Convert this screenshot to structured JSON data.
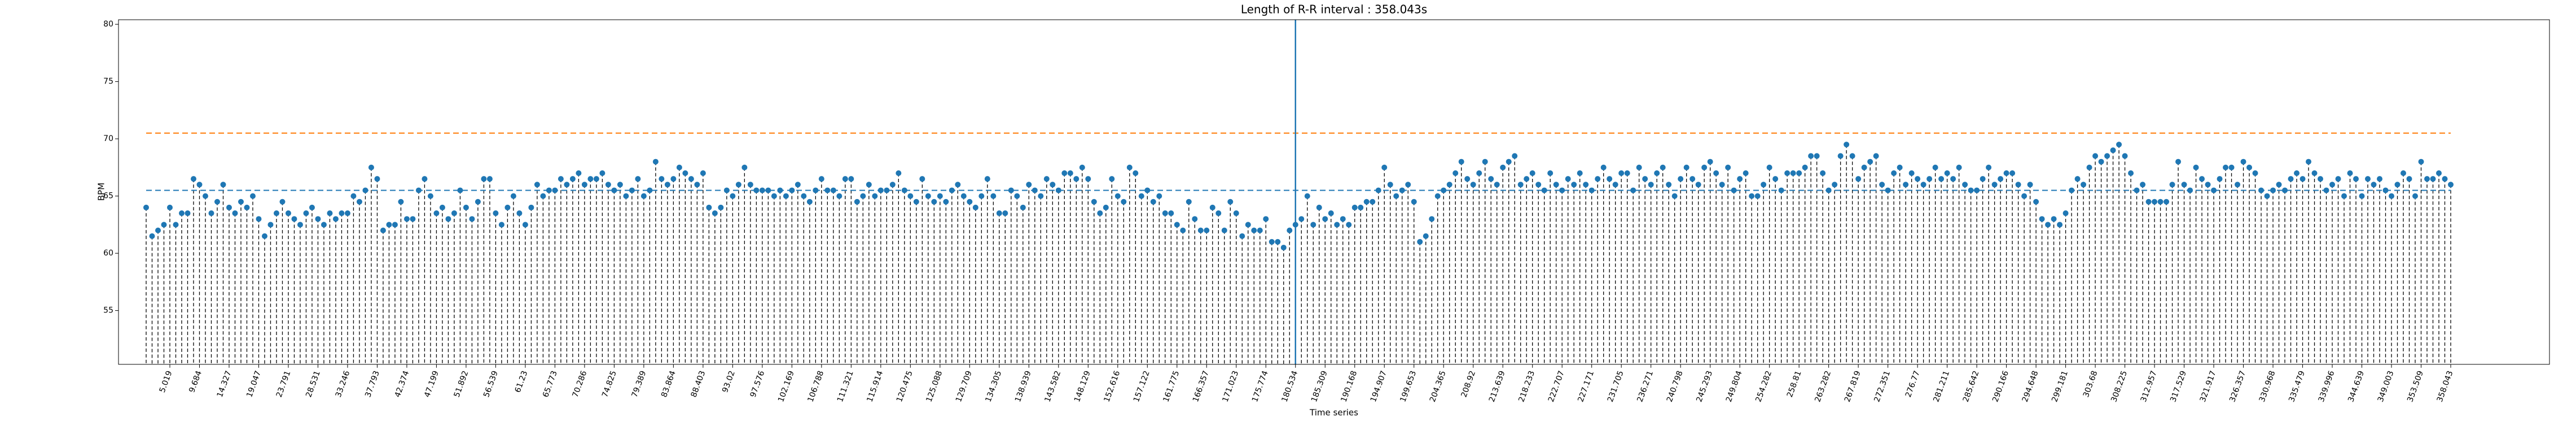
{
  "chart_data": {
    "type": "stem",
    "title": "Length of R-R interval : 358.043s",
    "x_label": "Time series",
    "y_label": "BPM",
    "color": "#1f77b4",
    "stem_color": "#000000",
    "ylim": [
      50.3,
      80.4
    ],
    "yticks": [
      55,
      60,
      65,
      70,
      75,
      80
    ],
    "hlines": [
      {
        "value": 65.5,
        "color": "#1f77b4"
      },
      {
        "value": 70.5,
        "color": "#ff7f0e"
      }
    ],
    "vline_x": 180.534,
    "vline_color": "#1f77b4",
    "categories": [
      null,
      null,
      null,
      null,
      "5.019",
      null,
      null,
      null,
      null,
      "9.684",
      null,
      null,
      null,
      null,
      "14.327",
      null,
      null,
      null,
      null,
      "19.047",
      null,
      null,
      null,
      null,
      "23.791",
      null,
      null,
      null,
      null,
      "28.531",
      null,
      null,
      null,
      null,
      "33.246",
      null,
      null,
      null,
      null,
      "37.793",
      null,
      null,
      null,
      null,
      "42.374",
      null,
      null,
      null,
      null,
      "47.199",
      null,
      null,
      null,
      null,
      "51.892",
      null,
      null,
      null,
      null,
      "56.539",
      null,
      null,
      null,
      null,
      "61.23",
      null,
      null,
      null,
      null,
      "65.773",
      null,
      null,
      null,
      null,
      "70.286",
      null,
      null,
      null,
      null,
      "74.825",
      null,
      null,
      null,
      null,
      "79.389",
      null,
      null,
      null,
      null,
      "83.864",
      null,
      null,
      null,
      null,
      "88.403",
      null,
      null,
      null,
      null,
      "93.02",
      null,
      null,
      null,
      null,
      "97.576",
      null,
      null,
      null,
      null,
      "102.169",
      null,
      null,
      null,
      null,
      "106.788",
      null,
      null,
      null,
      null,
      "111.321",
      null,
      null,
      null,
      null,
      "115.914",
      null,
      null,
      null,
      null,
      "120.475",
      null,
      null,
      null,
      null,
      "125.088",
      null,
      null,
      null,
      null,
      "129.709",
      null,
      null,
      null,
      null,
      "134.305",
      null,
      null,
      null,
      null,
      "138.939",
      null,
      null,
      null,
      null,
      "143.582",
      null,
      null,
      null,
      null,
      "148.129",
      null,
      null,
      null,
      null,
      "152.616",
      null,
      null,
      null,
      null,
      "157.122",
      null,
      null,
      null,
      null,
      "161.775",
      null,
      null,
      null,
      null,
      "166.357",
      null,
      null,
      null,
      null,
      "171.023",
      null,
      null,
      null,
      null,
      "175.774",
      null,
      null,
      null,
      null,
      "180.534",
      null,
      null,
      null,
      null,
      "185.309",
      null,
      null,
      null,
      null,
      "190.168",
      null,
      null,
      null,
      null,
      "194.907",
      null,
      null,
      null,
      null,
      "199.653",
      null,
      null,
      null,
      null,
      "204.365",
      null,
      null,
      null,
      null,
      "208.92",
      null,
      null,
      null,
      null,
      "213.639",
      null,
      null,
      null,
      null,
      "218.233",
      null,
      null,
      null,
      null,
      "222.707",
      null,
      null,
      null,
      null,
      "227.171",
      null,
      null,
      null,
      null,
      "231.705",
      null,
      null,
      null,
      null,
      "236.271",
      null,
      null,
      null,
      null,
      "240.798",
      null,
      null,
      null,
      null,
      "245.293",
      null,
      null,
      null,
      null,
      "249.804",
      null,
      null,
      null,
      null,
      "254.282",
      null,
      null,
      null,
      null,
      "258.81",
      null,
      null,
      null,
      null,
      "263.282",
      null,
      null,
      null,
      null,
      "267.819",
      null,
      null,
      null,
      null,
      "272.351",
      null,
      null,
      null,
      null,
      "276.77",
      null,
      null,
      null,
      null,
      "281.211",
      null,
      null,
      null,
      null,
      "285.642",
      null,
      null,
      null,
      null,
      "290.166",
      null,
      null,
      null,
      null,
      "294.648",
      null,
      null,
      null,
      null,
      "299.181",
      null,
      null,
      null,
      null,
      "303.68",
      null,
      null,
      null,
      null,
      "308.225",
      null,
      null,
      null,
      null,
      "312.957",
      null,
      null,
      null,
      null,
      "317.529",
      null,
      null,
      null,
      null,
      "321.917",
      null,
      null,
      null,
      null,
      "326.357",
      null,
      null,
      null,
      null,
      "330.968",
      null,
      null,
      null,
      null,
      "335.479",
      null,
      null,
      null,
      null,
      "339.996",
      null,
      null,
      null,
      null,
      "344.639",
      null,
      null,
      null,
      null,
      "349.003",
      null,
      null,
      null,
      null,
      "353.509",
      null,
      null,
      null,
      null,
      "358.043"
    ],
    "values": [
      64.0,
      61.5,
      62.0,
      62.5,
      64.0,
      62.5,
      63.5,
      63.5,
      66.5,
      66.0,
      65.0,
      63.5,
      64.5,
      66.0,
      64.0,
      63.5,
      64.5,
      64.0,
      65.0,
      63.0,
      61.5,
      62.5,
      63.5,
      64.5,
      63.5,
      63.0,
      62.5,
      63.5,
      64.0,
      63.0,
      62.5,
      63.5,
      63.0,
      63.5,
      63.5,
      65.0,
      64.5,
      65.5,
      67.5,
      66.5,
      62.0,
      62.5,
      62.5,
      64.5,
      63.0,
      63.0,
      65.5,
      66.5,
      65.0,
      63.5,
      64.0,
      63.0,
      63.5,
      65.5,
      64.0,
      63.0,
      64.5,
      66.5,
      66.5,
      63.5,
      62.5,
      64.0,
      65.0,
      63.5,
      62.5,
      64.0,
      66.0,
      65.0,
      65.5,
      65.5,
      66.5,
      66.0,
      66.5,
      67.0,
      66.0,
      66.5,
      66.5,
      67.0,
      66.0,
      65.5,
      66.0,
      65.0,
      65.5,
      66.5,
      65.0,
      65.5,
      68.0,
      66.5,
      66.0,
      66.5,
      67.5,
      67.0,
      66.5,
      66.0,
      67.0,
      64.0,
      63.5,
      64.0,
      65.5,
      65.0,
      66.0,
      67.5,
      66.0,
      65.5,
      65.5,
      65.5,
      65.0,
      65.5,
      65.0,
      65.5,
      66.0,
      65.0,
      64.5,
      65.5,
      66.5,
      65.5,
      65.5,
      65.0,
      66.5,
      66.5,
      64.5,
      65.0,
      66.0,
      65.0,
      65.5,
      65.5,
      66.0,
      67.0,
      65.5,
      65.0,
      64.5,
      66.5,
      65.0,
      64.5,
      65.0,
      64.5,
      65.5,
      66.0,
      65.0,
      64.5,
      64.0,
      65.0,
      66.5,
      65.0,
      63.5,
      63.5,
      65.5,
      65.0,
      64.0,
      66.0,
      65.5,
      65.0,
      66.5,
      66.0,
      65.5,
      67.0,
      67.0,
      66.5,
      67.5,
      66.5,
      64.5,
      63.5,
      64.0,
      66.5,
      65.0,
      64.5,
      67.5,
      67.0,
      65.0,
      65.5,
      64.5,
      65.0,
      63.5,
      63.5,
      62.5,
      62.0,
      64.5,
      63.0,
      62.0,
      62.0,
      64.0,
      63.5,
      62.0,
      64.5,
      63.5,
      61.5,
      62.5,
      62.0,
      62.0,
      63.0,
      61.0,
      61.0,
      60.5,
      62.0,
      62.5,
      63.0,
      65.0,
      62.5,
      64.0,
      63.0,
      63.5,
      62.5,
      63.0,
      62.5,
      64.0,
      64.0,
      64.5,
      64.5,
      65.5,
      67.5,
      66.0,
      65.0,
      65.5,
      66.0,
      64.5,
      61.0,
      61.5,
      63.0,
      65.0,
      65.5,
      66.0,
      67.0,
      68.0,
      66.5,
      66.0,
      67.0,
      68.0,
      66.5,
      66.0,
      67.5,
      68.0,
      68.5,
      66.0,
      66.5,
      67.0,
      66.0,
      65.5,
      67.0,
      66.0,
      65.5,
      66.5,
      66.0,
      67.0,
      66.0,
      65.5,
      66.5,
      67.5,
      66.5,
      66.0,
      67.0,
      67.0,
      65.5,
      67.5,
      66.5,
      66.0,
      67.0,
      67.5,
      66.0,
      65.0,
      66.5,
      67.5,
      66.5,
      66.0,
      67.5,
      68.0,
      67.0,
      66.0,
      67.5,
      65.5,
      66.5,
      67.0,
      65.0,
      65.0,
      66.0,
      67.5,
      66.5,
      65.5,
      67.0,
      67.0,
      67.0,
      67.5,
      68.5,
      68.5,
      67.0,
      65.5,
      66.0,
      68.5,
      69.5,
      68.5,
      66.5,
      67.5,
      68.0,
      68.5,
      66.0,
      65.5,
      67.0,
      67.5,
      66.0,
      67.0,
      66.5,
      66.0,
      66.5,
      67.5,
      66.5,
      67.0,
      66.5,
      67.5,
      66.0,
      65.5,
      65.5,
      66.5,
      67.5,
      66.0,
      66.5,
      67.0,
      67.0,
      66.0,
      65.0,
      66.0,
      64.5,
      63.0,
      62.5,
      63.0,
      62.5,
      63.5,
      65.5,
      66.5,
      66.0,
      67.5,
      68.5,
      68.0,
      68.5,
      69.0,
      69.5,
      68.5,
      67.0,
      65.5,
      66.0,
      64.5,
      64.5,
      64.5,
      64.5,
      66.0,
      68.0,
      66.0,
      65.5,
      67.5,
      66.5,
      66.0,
      65.5,
      66.5,
      67.5,
      67.5,
      66.0,
      68.0,
      67.5,
      67.0,
      65.5,
      65.0,
      65.5,
      66.0,
      65.5,
      66.5,
      67.0,
      66.5,
      68.0,
      67.0,
      66.5,
      65.5,
      66.0,
      66.5,
      65.0,
      67.0,
      66.5,
      65.0,
      66.5,
      66.0,
      66.5,
      65.5,
      65.0,
      66.0,
      67.0,
      66.5,
      65.0,
      68.0,
      66.5,
      66.5,
      67.0,
      66.5,
      66.0
    ]
  }
}
